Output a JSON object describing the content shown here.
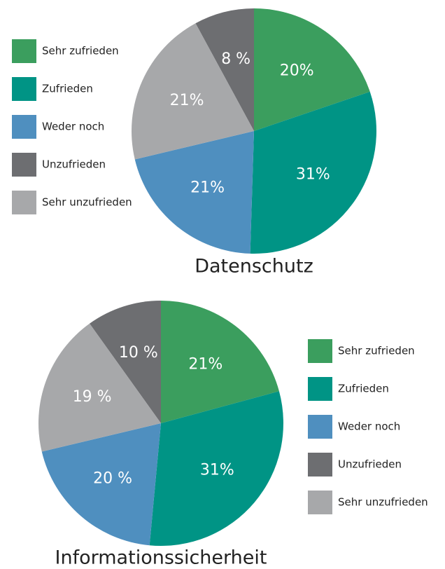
{
  "chart_data": [
    {
      "type": "pie",
      "title": "Datenschutz",
      "categories": [
        "Sehr zufrieden",
        "Zufrieden",
        "Weder noch",
        "Unzufrieden",
        "Sehr unzufrieden"
      ],
      "values": [
        20,
        31,
        21,
        8,
        21
      ],
      "value_labels": [
        "20%",
        "31%",
        "21%",
        "8 %",
        "21%"
      ],
      "colors": [
        "#3b9e5e",
        "#009485",
        "#4f8fbf",
        "#6d6e71",
        "#a7a8aa"
      ]
    },
    {
      "type": "pie",
      "title": "Informationssicherheit",
      "categories": [
        "Sehr zufrieden",
        "Zufrieden",
        "Weder noch",
        "Unzufrieden",
        "Sehr unzufrieden"
      ],
      "values": [
        21,
        31,
        20,
        10,
        19
      ],
      "value_labels": [
        "21%",
        "31%",
        "20 %",
        "10 %",
        "19 %"
      ],
      "colors": [
        "#3b9e5e",
        "#009485",
        "#4f8fbf",
        "#6d6e71",
        "#a7a8aa"
      ]
    }
  ]
}
